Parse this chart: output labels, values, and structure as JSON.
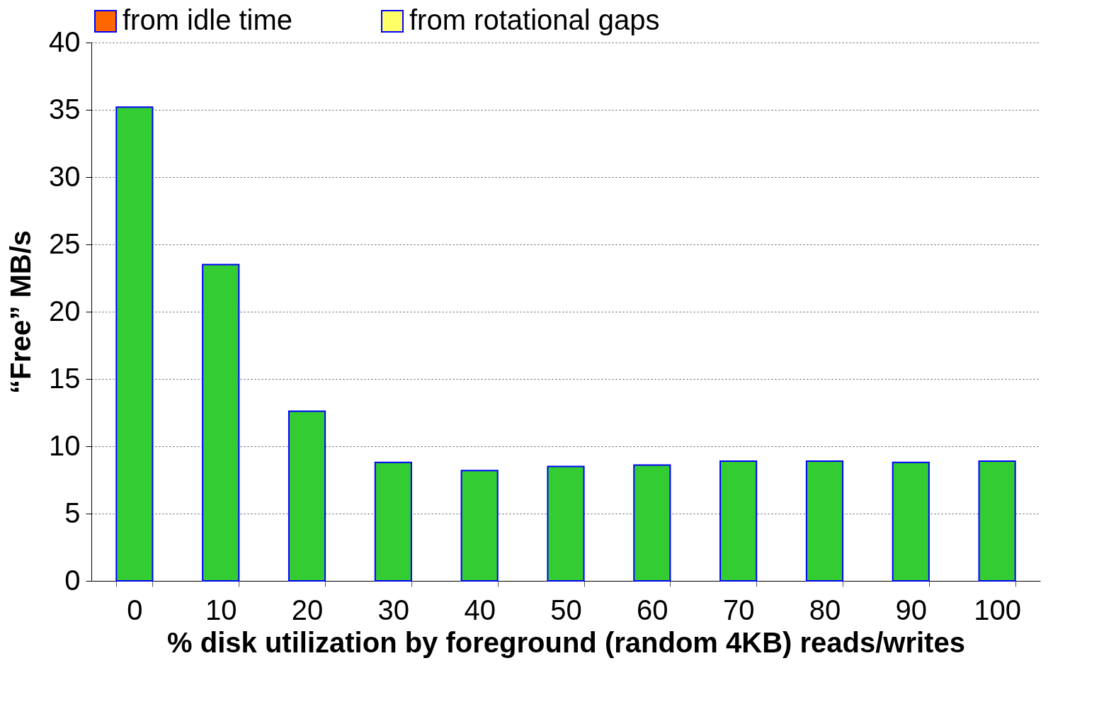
{
  "chart_data": {
    "type": "bar",
    "xlabel": "% disk utilization by foreground (random 4KB) reads/writes",
    "ylabel": "“Free” MB/s",
    "categories": [
      "0",
      "10",
      "20",
      "30",
      "40",
      "50",
      "60",
      "70",
      "80",
      "90",
      "100"
    ],
    "series": [
      {
        "color": "#33cc33",
        "values": [
          35.2,
          23.5,
          12.6,
          8.8,
          8.2,
          8.5,
          8.6,
          8.9,
          8.9,
          8.8,
          8.9
        ]
      },
      {
        "name": "from idle time",
        "color": "#ff6600",
        "values": [
          null,
          null,
          null,
          null,
          null,
          null,
          null,
          null,
          null,
          null,
          null
        ]
      },
      {
        "name": "from rotational gaps",
        "color": "#ffff66",
        "values": [
          null,
          null,
          null,
          null,
          null,
          null,
          null,
          null,
          null,
          null,
          null
        ]
      }
    ],
    "ylim": [
      0,
      40
    ],
    "yticks": [
      0,
      5,
      10,
      15,
      20,
      25,
      30,
      35,
      40
    ],
    "grid": "y",
    "legend": "top"
  }
}
